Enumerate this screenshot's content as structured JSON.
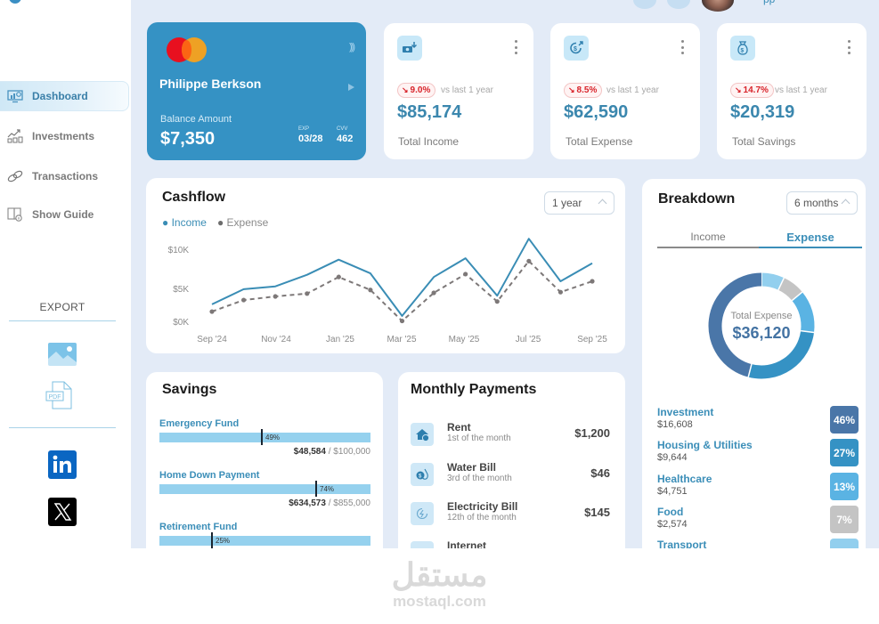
{
  "header": {
    "user_name_fragment": "pp"
  },
  "sidebar": {
    "items": [
      {
        "label": "Dashboard",
        "icon": "dashboard-monitor-icon",
        "active": true
      },
      {
        "label": "Investments",
        "icon": "investment-chart-icon",
        "active": false
      },
      {
        "label": "Transactions",
        "icon": "transactions-link-icon",
        "active": false
      },
      {
        "label": "Show Guide",
        "icon": "guide-book-icon",
        "active": false
      }
    ],
    "export_label": "EXPORT",
    "export_items": [
      {
        "label": "Image",
        "icon": "image-icon"
      },
      {
        "label": "PDF",
        "icon": "pdf-icon"
      }
    ],
    "share_items": [
      {
        "label": "LinkedIn",
        "icon": "linkedin-icon"
      },
      {
        "label": "X",
        "icon": "x-icon"
      }
    ]
  },
  "credit_card": {
    "holder": "Philippe Berkson",
    "balance_label": "Balance Amount",
    "balance": "$7,350",
    "exp_label": "EXP",
    "exp": "03/28",
    "cvv_label": "CVV",
    "cvv": "462"
  },
  "stats": [
    {
      "label": "Total Income",
      "value": "$85,174",
      "change": "9.0%",
      "compare": "vs last 1 year",
      "icon": "money-in-icon"
    },
    {
      "label": "Total Expense",
      "value": "$62,590",
      "change": "8.5%",
      "compare": "vs last 1 year",
      "icon": "money-out-icon"
    },
    {
      "label": "Total Savings",
      "value": "$20,319",
      "change": "14.7%",
      "compare": "vs last 1 year",
      "icon": "money-bag-icon"
    }
  ],
  "cashflow": {
    "title": "Cashflow",
    "range": "1 year",
    "legend": [
      "Income",
      "Expense"
    ]
  },
  "chart_data": {
    "type": "line",
    "title": "Cashflow",
    "xlabel": "",
    "ylabel": "",
    "x": [
      "Sep '24",
      "Oct '24",
      "Nov '24",
      "Dec '24",
      "Jan '25",
      "Feb '25",
      "Mar '25",
      "Apr '25",
      "May '25",
      "Jun '25",
      "Jul '25",
      "Aug '25",
      "Sep '25"
    ],
    "x_tick_labels": [
      "Sep '24",
      "Nov '24",
      "Jan '25",
      "Mar '25",
      "May '25",
      "Jul '25",
      "Sep '25"
    ],
    "y_tick_labels": [
      "$0K",
      "$5K",
      "$10K"
    ],
    "ylim": [
      0,
      12000
    ],
    "grid": false,
    "legend_position": "top-left",
    "series": [
      {
        "name": "Income",
        "color": "#3a8db5",
        "style": "solid",
        "values": [
          2600,
          4700,
          5100,
          6700,
          8800,
          6900,
          1000,
          6400,
          9000,
          3800,
          11700,
          5800,
          8300
        ]
      },
      {
        "name": "Expense",
        "color": "#7d7878",
        "style": "dashed",
        "values": [
          1600,
          3200,
          3700,
          4100,
          6400,
          4600,
          300,
          4200,
          6800,
          3000,
          8600,
          4300,
          5800
        ]
      }
    ]
  },
  "breakdown": {
    "title": "Breakdown",
    "range": "6 months",
    "tabs": [
      "Income",
      "Expense"
    ],
    "active_tab": "Expense",
    "center_label": "Total Expense",
    "center_value": "$36,120",
    "categories": [
      {
        "name": "Investment",
        "amount": "$16,608",
        "pct": "46%",
        "color": "#4a76a8"
      },
      {
        "name": "Housing & Utilities",
        "amount": "$9,644",
        "pct": "27%",
        "color": "#3592c4"
      },
      {
        "name": "Healthcare",
        "amount": "$4,751",
        "pct": "13%",
        "color": "#5ab3e3"
      },
      {
        "name": "Food",
        "amount": "$2,574",
        "pct": "7%",
        "color": "#c4c4c4"
      },
      {
        "name": "Transport",
        "amount": "",
        "pct": "",
        "color": "#92cfee"
      }
    ]
  },
  "savings": {
    "title": "Savings",
    "goals": [
      {
        "name": "Emergency Fund",
        "pct": "49%",
        "current": "$48,584",
        "target": "$100,000",
        "pct_num": 49
      },
      {
        "name": "Home Down Payment",
        "pct": "74%",
        "current": "$634,573",
        "target": "$855,000",
        "pct_num": 74
      },
      {
        "name": "Retirement Fund",
        "pct": "25%",
        "current": "",
        "target": "",
        "pct_num": 25
      }
    ]
  },
  "payments": {
    "title": "Monthly Payments",
    "items": [
      {
        "name": "Rent",
        "when": "1st of the month",
        "amount": "$1,200",
        "icon": "house-dollar-icon"
      },
      {
        "name": "Water Bill",
        "when": "3rd of the month",
        "amount": "$46",
        "icon": "water-drop-dollar-icon"
      },
      {
        "name": "Electricity Bill",
        "when": "12th of the month",
        "amount": "$145",
        "icon": "electricity-icon"
      },
      {
        "name": "Internet",
        "when": "",
        "amount": "",
        "icon": "wifi-icon"
      }
    ]
  },
  "watermark": {
    "arabic": "مستقل",
    "latin": "mostaql.com"
  }
}
